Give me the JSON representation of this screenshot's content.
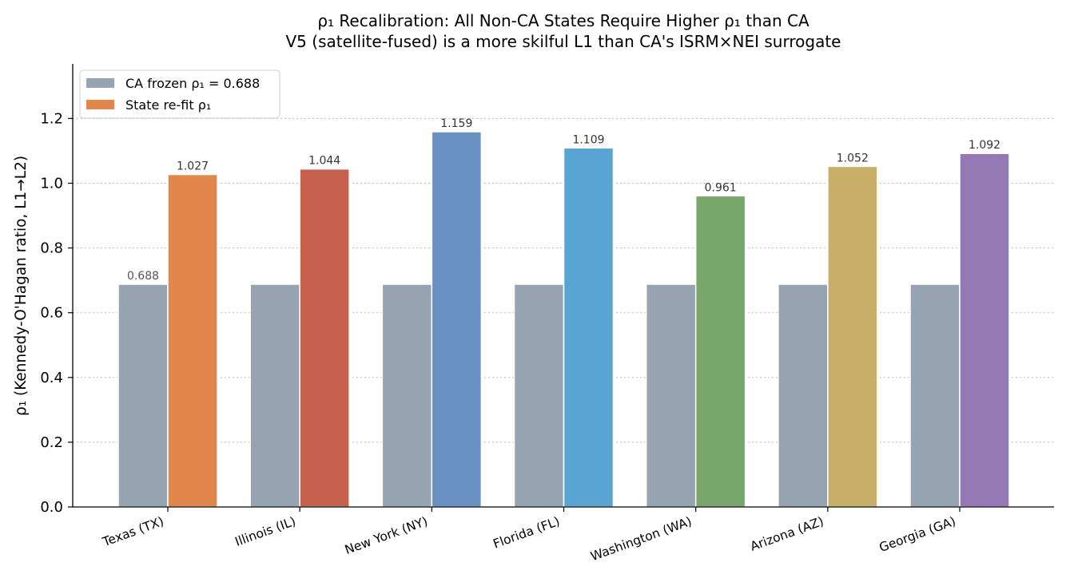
{
  "chart_data": {
    "type": "bar",
    "title": "ρ₁ Recalibration: All Non-CA States Require Higher ρ₁ than CA",
    "subtitle": "V5 (satellite-fused) is a more skilful L1 than CA's ISRM×NEI surrogate",
    "xlabel": "",
    "ylabel": "ρ₁ (Kennedy-O'Hagan ratio, L1→L2)",
    "ylim": [
      0,
      1.37
    ],
    "yticks": [
      "0.0",
      "0.2",
      "0.4",
      "0.6",
      "0.8",
      "1.0",
      "1.2"
    ],
    "grid": "horizontal dotted",
    "legend_position": "top-left",
    "categories": [
      "Texas (TX)",
      "Illinois (IL)",
      "New York (NY)",
      "Florida (FL)",
      "Washington (WA)",
      "Arizona (AZ)",
      "Georgia (GA)"
    ],
    "series": [
      {
        "name": "CA frozen ρ₁ = 0.688",
        "values": [
          0.688,
          0.688,
          0.688,
          0.688,
          0.688,
          0.688,
          0.688
        ],
        "labels": [
          "0.688",
          "",
          "",
          "",
          "",
          "",
          ""
        ],
        "colors": [
          "#96a3b0",
          "#96a3b0",
          "#96a3b0",
          "#96a3b0",
          "#96a3b0",
          "#96a3b0",
          "#96a3b0"
        ]
      },
      {
        "name": "State re-fit ρ₁",
        "values": [
          1.027,
          1.044,
          1.159,
          1.109,
          0.961,
          1.052,
          1.092
        ],
        "labels": [
          "1.027",
          "1.044",
          "1.159",
          "1.109",
          "0.961",
          "1.052",
          "1.092"
        ],
        "colors": [
          "#e2874b",
          "#c5614d",
          "#6891c1",
          "#5aa4d3",
          "#79a66a",
          "#c8af68",
          "#9479b4"
        ]
      }
    ],
    "legend_swatches": [
      "#96a3b0",
      "#e2874b"
    ]
  }
}
